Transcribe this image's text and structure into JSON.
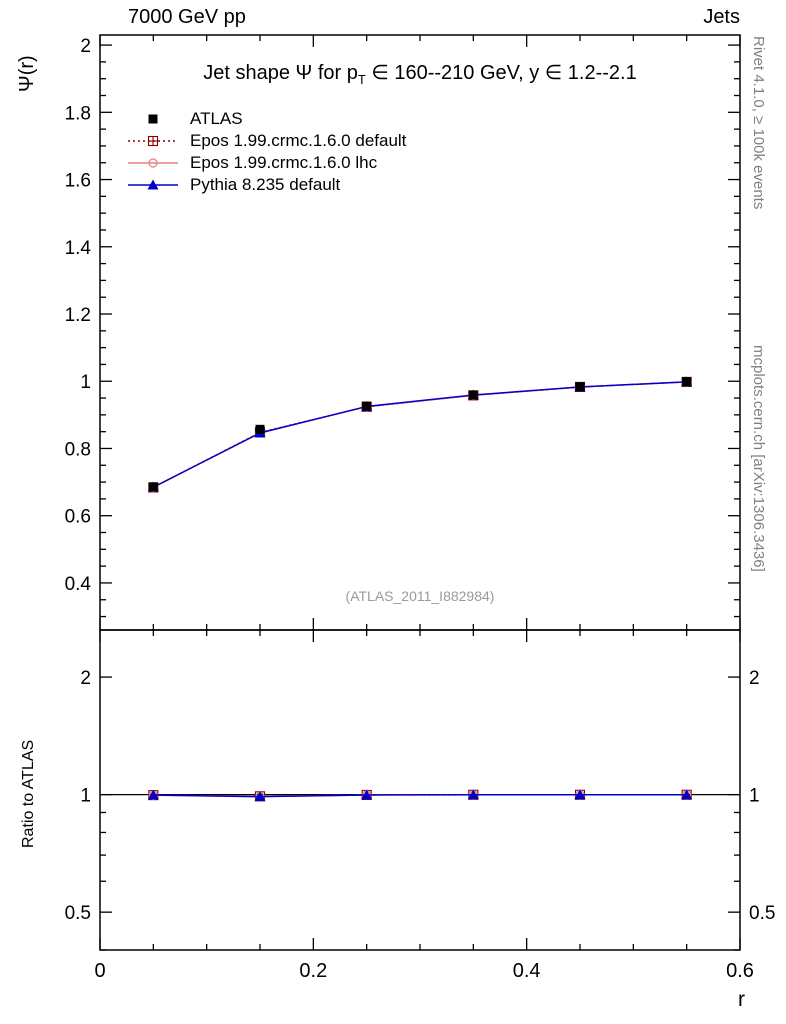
{
  "header": {
    "beam": "7000 GeV pp",
    "analysis": "Jets"
  },
  "sidebar_right": {
    "top": "Rivet 4.1.0, ≥ 100k events",
    "bottom": "mcplots.cern.ch [arXiv:1306.3436]"
  },
  "watermark": "(ATLAS_2011_I882984)",
  "chart_data": {
    "type": "line",
    "title": "Jet shape Ψ for p_T ∈ 160--210 GeV, y ∈ 1.2--2.1",
    "title_parts": {
      "pre": "Jet shape Ψ for p",
      "sub": "T",
      "post": " ∈ 160--210 GeV, y ∈ 1.2--2.1"
    },
    "xlabel": "r",
    "ylabel": "Ψ(r)",
    "ylabel_ratio": "Ratio to ATLAS",
    "x": [
      0.05,
      0.15,
      0.25,
      0.35,
      0.45,
      0.55
    ],
    "xlim": [
      0,
      0.6
    ],
    "xticks_major": [
      0,
      0.2,
      0.4,
      0.6
    ],
    "xtick_minor_step": 0.05,
    "main_panel": {
      "scale": "linear",
      "ylim": [
        0.26,
        2.03
      ],
      "yticks_major": [
        0.4,
        0.6,
        0.8,
        1,
        1.2,
        1.4,
        1.6,
        1.8,
        2
      ],
      "ytick_minor_step": 0.05
    },
    "ratio_panel": {
      "scale": "log",
      "ylim": [
        0.4,
        2.64
      ],
      "yticks_major": [
        0.5,
        1,
        2
      ],
      "yticks_minor": [
        0.4,
        0.6,
        0.7,
        0.8,
        0.9
      ],
      "reference": 1
    },
    "series": [
      {
        "name": "ATLAS",
        "color": "#000000",
        "marker": "square-filled",
        "line": "none",
        "values": [
          0.686,
          0.857,
          0.926,
          0.959,
          0.984,
          0.999
        ],
        "ratio": null
      },
      {
        "name": "Epos 1.99.crmc.1.6.0 default",
        "color": "#880000",
        "marker": "cross-open",
        "line": "dotted",
        "values": [
          0.684,
          0.848,
          0.924,
          0.958,
          0.983,
          0.998
        ],
        "ratio": [
          0.997,
          0.99,
          0.998,
          0.999,
          0.999,
          0.999
        ]
      },
      {
        "name": "Epos 1.99.crmc.1.6.0 lhc",
        "color": "#e88080",
        "marker": "circle-open",
        "line": "solid",
        "values": [
          0.684,
          0.847,
          0.924,
          0.958,
          0.983,
          0.998
        ],
        "ratio": [
          0.996,
          0.989,
          0.998,
          0.999,
          0.999,
          0.999
        ]
      },
      {
        "name": "Pythia 8.235 default",
        "color": "#0000cc",
        "marker": "triangle-filled",
        "line": "solid",
        "values": [
          0.685,
          0.846,
          0.925,
          0.959,
          0.983,
          0.998
        ],
        "ratio": [
          0.998,
          0.988,
          0.998,
          0.999,
          0.999,
          0.999
        ]
      }
    ]
  }
}
